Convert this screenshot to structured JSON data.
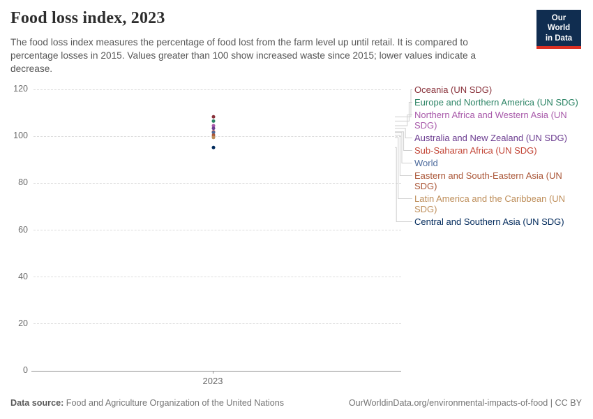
{
  "header": {
    "title": "Food loss index, 2023",
    "subtitle": "The food loss index measures the percentage of food lost from the farm level up until retail. It is compared to percentage losses in 2015. Values greater than 100 show increased waste since 2015; lower values indicate a decrease.",
    "logo": {
      "line1": "Our World",
      "line2": "in Data",
      "bg_color": "#102d50",
      "accent_color": "#dc3023"
    }
  },
  "chart_data": {
    "type": "scatter",
    "title": "Food loss index, 2023",
    "x": [
      2023
    ],
    "x_tick_label": "2023",
    "yticks": [
      0,
      20,
      40,
      60,
      80,
      100,
      120
    ],
    "ylim": [
      0,
      120
    ],
    "grid": "dashed horizontal",
    "legend_position": "right, connected by elbow lines",
    "series": [
      {
        "name": "Oceania (UN SDG)",
        "value": 108.3,
        "color": "#883039"
      },
      {
        "name": "Europe and Northern America (UN SDG)",
        "value": 106.5,
        "color": "#2c8465"
      },
      {
        "name": "Northern Africa and Western Asia (UN SDG)",
        "value": 104.5,
        "color": "#a85aaa"
      },
      {
        "name": "Australia and New Zealand (UN SDG)",
        "value": 103.4,
        "color": "#6d3e91"
      },
      {
        "name": "Sub-Saharan Africa (UN SDG)",
        "value": 101.9,
        "color": "#c34637"
      },
      {
        "name": "World",
        "value": 101.6,
        "color": "#4c6a9c"
      },
      {
        "name": "Eastern and South-Eastern Asia (UN SDG)",
        "value": 100.5,
        "color": "#aa5637"
      },
      {
        "name": "Latin America and the Caribbean (UN SDG)",
        "value": 99.5,
        "color": "#be8e5a"
      },
      {
        "name": "Central and Southern Asia (UN SDG)",
        "value": 95.2,
        "color": "#00295b"
      }
    ],
    "colors": {
      "gridline": "#dcdcdc",
      "axis": "#8f8f8f",
      "tick_text": "#6b6b6b",
      "connector": "#cfcfcf"
    }
  },
  "footer": {
    "source_label": "Data source:",
    "source_text": " Food and Agriculture Organization of the United Nations",
    "link_text": "OurWorldinData.org/environmental-impacts-of-food | CC BY"
  }
}
